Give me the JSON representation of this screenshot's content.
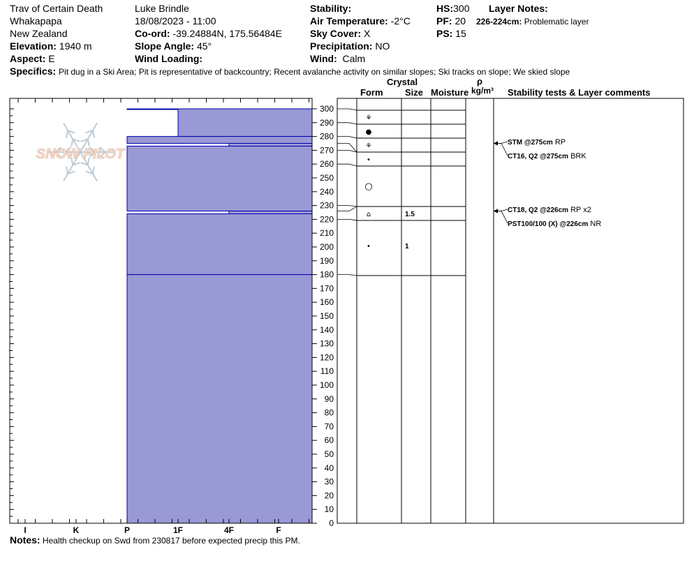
{
  "header": {
    "location_name": "Trav of Certain Death",
    "area": "Whakapapa",
    "country": "New Zealand",
    "elevation_label": "Elevation:",
    "elevation_value": "1940 m",
    "aspect_label": "Aspect:",
    "aspect_value": "E",
    "observer": "Luke Brindle",
    "datetime": "18/08/2023 - 11:00",
    "coord_label": "Co-ord:",
    "coord_value": "-39.24884N, 175.56484E",
    "slope_label": "Slope Angle:",
    "slope_value": "45°",
    "wind_loading_label": "Wind Loading:",
    "wind_loading_value": "",
    "stability_label": "Stability:",
    "stability_value": "",
    "air_temp_label": "Air Temperature:",
    "air_temp_value": "-2°C",
    "sky_label": "Sky Cover:",
    "sky_value": "X",
    "precip_label": "Precipitation:",
    "precip_value": "NO",
    "wind_label": "Wind:",
    "wind_value": "Calm",
    "hs_label": "HS:",
    "hs_value": "300",
    "pf_label": "PF:",
    "pf_value": "20",
    "ps_label": "PS:",
    "ps_value": "15",
    "layer_notes_label": "Layer Notes:",
    "layer_notes_range": "226-224cm:",
    "layer_notes_text": "Problematic layer",
    "specifics_label": "Specifics:",
    "specifics_text": "Pit dug in a Ski Area; Pit is representative of backcountry; Recent avalanche activity on similar slopes; Ski tracks on slope; We skied slope"
  },
  "watermark": {
    "text": "SNOW PILOT"
  },
  "columns": {
    "crystal": "Crystal",
    "form": "Form",
    "size": "Size",
    "moisture": "Moisture",
    "rho": "ρ",
    "density_unit": "kg/m³",
    "stability": "Stability tests & Layer comments"
  },
  "notes": {
    "label": "Notes:",
    "text": "Health checkup on Swd from 230817 before expected precip this PM."
  },
  "colors": {
    "fill": "#9999d6",
    "line": "#0000aa"
  },
  "chart_data": {
    "type": "bar",
    "orientation": "horizontal",
    "y_ticks": [
      0,
      10,
      20,
      30,
      40,
      50,
      60,
      70,
      80,
      90,
      100,
      110,
      120,
      130,
      140,
      150,
      160,
      170,
      180,
      190,
      200,
      210,
      220,
      230,
      240,
      250,
      260,
      270,
      280,
      290,
      300
    ],
    "ylim": [
      0,
      308
    ],
    "x_categories": [
      "I",
      "K",
      "P",
      "1F",
      "4F",
      "F"
    ],
    "hardness_layers": [
      {
        "top": 308,
        "bottom": 300,
        "hardness": "P"
      },
      {
        "top": 300,
        "bottom": 280,
        "hardness": "1F"
      },
      {
        "top": 280,
        "bottom": 275,
        "hardness": "P"
      },
      {
        "top": 275,
        "bottom": 273,
        "hardness": "4F"
      },
      {
        "top": 273,
        "bottom": 226,
        "hardness": "P"
      },
      {
        "top": 226,
        "bottom": 224,
        "hardness": "4F"
      },
      {
        "top": 224,
        "bottom": 180,
        "hardness": "P"
      },
      {
        "top": 180,
        "bottom": 0,
        "hardness": "P"
      }
    ],
    "profile_rows": [
      {
        "top": 300,
        "bottom": 290,
        "form": "⚘",
        "size": ""
      },
      {
        "top": 290,
        "bottom": 280,
        "form": "●",
        "size": ""
      },
      {
        "top": 280,
        "bottom": 270,
        "form": "⚘",
        "size": ""
      },
      {
        "top": 270,
        "bottom": 260,
        "form": "•",
        "size": ""
      },
      {
        "top": 260,
        "bottom": 230,
        "form": "○",
        "size": ""
      },
      {
        "top": 230,
        "bottom": 220,
        "form": "⌂",
        "size": "1.5"
      },
      {
        "top": 220,
        "bottom": 180,
        "form": "•",
        "size": "1"
      }
    ],
    "layer_ends": [
      300,
      290,
      280,
      275,
      270,
      260,
      230,
      226,
      220,
      180
    ],
    "stability_tests": [
      {
        "depth": 275,
        "label": "STM @275cm",
        "result": "RP"
      },
      {
        "depth": 275,
        "label": "CT16, Q2 @275cm",
        "result": "BRK"
      },
      {
        "depth": 226,
        "label": "CT18, Q2 @226cm",
        "result": "RP x2"
      },
      {
        "depth": 226,
        "label": "PST100/100 (X) @226cm",
        "result": "NR"
      }
    ]
  }
}
